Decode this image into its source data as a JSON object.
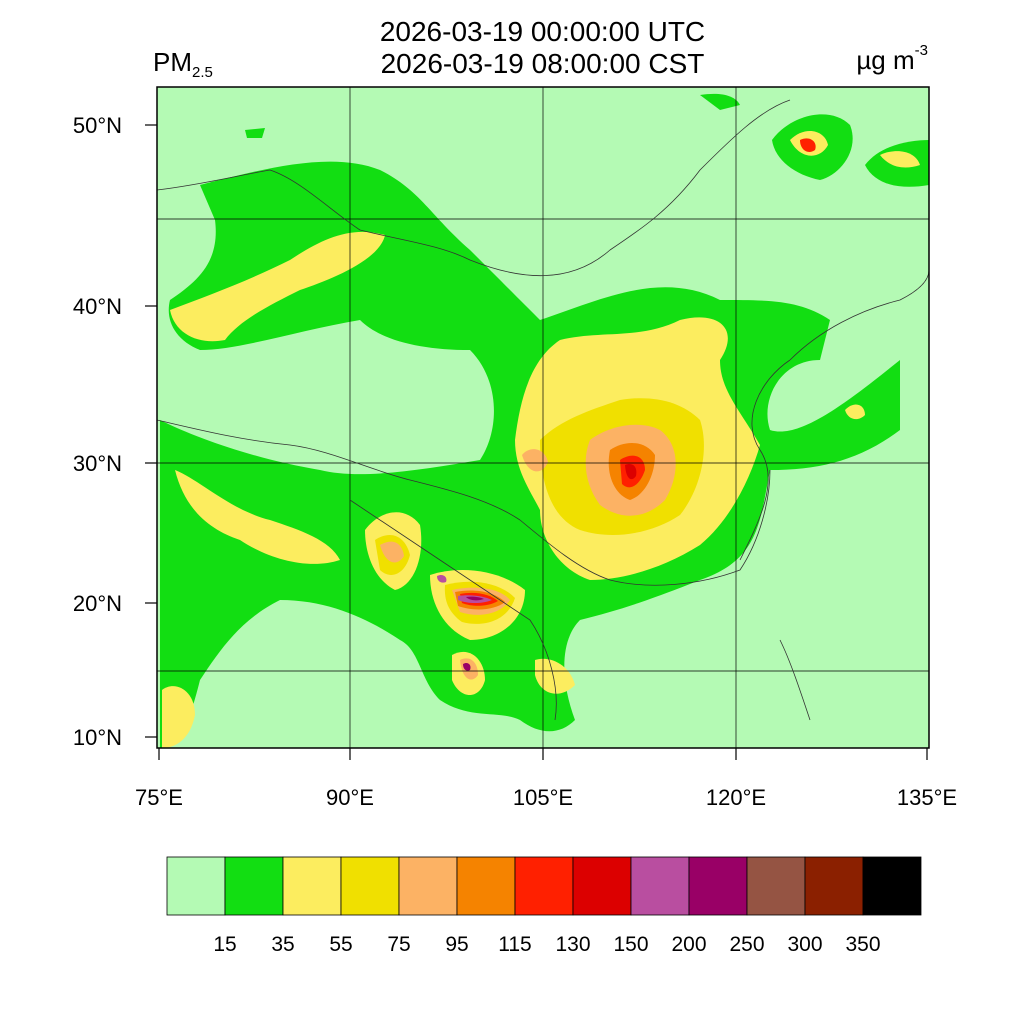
{
  "header": {
    "title_utc": "2026-03-19 00:00:00 UTC",
    "title_cst": "2026-03-19 08:00:00 CST",
    "variable_main": "PM",
    "variable_sub": "2.5",
    "unit_main": "µg m",
    "unit_sup": "-3"
  },
  "axes": {
    "lat_ticks": [
      "50°N",
      "40°N",
      "30°N",
      "20°N",
      "10°N"
    ],
    "lon_ticks": [
      "75°E",
      "90°E",
      "105°E",
      "120°E",
      "135°E"
    ]
  },
  "colorbar": {
    "colors": [
      "#b4fab4",
      "#12de12",
      "#fced5f",
      "#f0e000",
      "#fcb264",
      "#f58300",
      "#ff2000",
      "#dc0000",
      "#b94ea0",
      "#990066",
      "#955443",
      "#8b2000",
      "#000000"
    ],
    "labels": [
      "15",
      "35",
      "55",
      "75",
      "95",
      "115",
      "130",
      "150",
      "200",
      "250",
      "300",
      "350"
    ]
  },
  "legend_colors": {
    "background": "#b4fab4",
    "green": "#12de12",
    "yellow_light": "#fced5f",
    "yellow": "#f0e000",
    "orange_light": "#fcb264",
    "orange": "#f58300",
    "red": "#ff2000",
    "dark_red": "#dc0000",
    "magenta": "#b94ea0",
    "purple": "#990066"
  }
}
